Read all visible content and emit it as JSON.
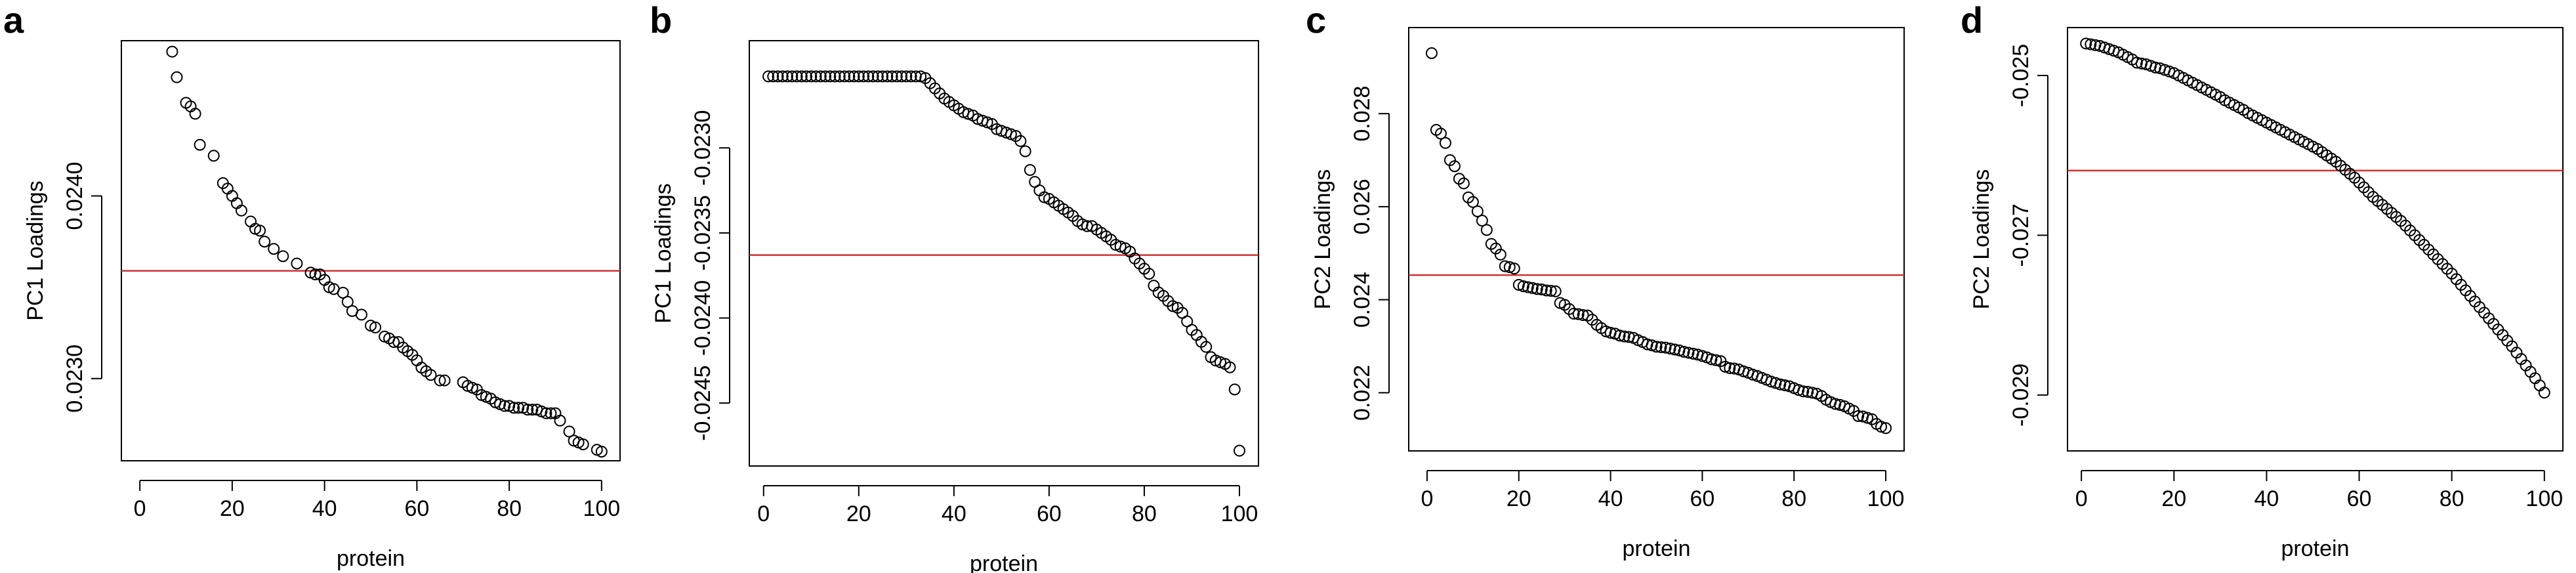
{
  "chart_data": [
    {
      "panel": "a",
      "type": "scatter",
      "xlabel": "protein",
      "ylabel": "PC1 Loadings",
      "xlim": [
        -4,
        104
      ],
      "ylim": [
        0.02255,
        0.02485
      ],
      "xticks": [
        0,
        20,
        40,
        60,
        80,
        100
      ],
      "yticks": [
        0.023,
        0.024
      ],
      "ytick_labels": [
        "0.0230",
        "0.0240"
      ],
      "reference_line": {
        "value": 0.02359,
        "color": "#cc3333"
      },
      "grid": false,
      "x": [
        7,
        8,
        10,
        11,
        12,
        13,
        16,
        18,
        19,
        20,
        21,
        22,
        24,
        25,
        26,
        27,
        29,
        31,
        34,
        37,
        38,
        39,
        40,
        41,
        42,
        44,
        45,
        46,
        48,
        50,
        51,
        53,
        54,
        55,
        56,
        57,
        58,
        59,
        60,
        61,
        62,
        63,
        65,
        66,
        70,
        71,
        72,
        73,
        74,
        75,
        76,
        77,
        78,
        79,
        80,
        81,
        82,
        83,
        84,
        85,
        86,
        87,
        88,
        89,
        90,
        91,
        93,
        94,
        95,
        96,
        99,
        100
      ],
      "y": [
        0.02479,
        0.02465,
        0.02451,
        0.02449,
        0.02445,
        0.02428,
        0.02422,
        0.02407,
        0.02404,
        0.024,
        0.02396,
        0.02392,
        0.02386,
        0.02382,
        0.02381,
        0.02375,
        0.02371,
        0.02367,
        0.02363,
        0.02358,
        0.02357,
        0.02357,
        0.02354,
        0.0235,
        0.02349,
        0.02347,
        0.02342,
        0.02337,
        0.02335,
        0.02329,
        0.02328,
        0.02323,
        0.02322,
        0.0232,
        0.0232,
        0.02317,
        0.02315,
        0.02313,
        0.0231,
        0.02306,
        0.02304,
        0.02302,
        0.02299,
        0.02299,
        0.02298,
        0.02296,
        0.02295,
        0.02294,
        0.02291,
        0.0229,
        0.02289,
        0.02287,
        0.02286,
        0.02285,
        0.02285,
        0.02284,
        0.02284,
        0.02284,
        0.02283,
        0.02283,
        0.02283,
        0.02282,
        0.02281,
        0.02281,
        0.02281,
        0.02277,
        0.02271,
        0.02266,
        0.02265,
        0.02264,
        0.02261,
        0.0226
      ]
    },
    {
      "panel": "b",
      "type": "scatter",
      "xlabel": "protein",
      "ylabel": "PC1 Loadings",
      "xlim": [
        -3,
        104
      ],
      "ylim": [
        -0.02487,
        -0.02237
      ],
      "xticks": [
        0,
        20,
        40,
        60,
        80,
        100
      ],
      "yticks": [
        -0.0245,
        -0.024,
        -0.0235,
        -0.023
      ],
      "ytick_labels": [
        "-0.0245",
        "-0.0240",
        "-0.0235",
        "-0.0230"
      ],
      "reference_line": {
        "value": -0.02363,
        "color": "#cc3333"
      },
      "grid": false,
      "x": [
        1,
        2,
        3,
        4,
        5,
        6,
        7,
        8,
        9,
        10,
        11,
        12,
        13,
        14,
        15,
        16,
        17,
        18,
        19,
        20,
        21,
        22,
        23,
        24,
        25,
        26,
        27,
        28,
        29,
        30,
        31,
        32,
        33,
        34,
        35,
        36,
        37,
        38,
        39,
        40,
        41,
        42,
        43,
        44,
        45,
        46,
        47,
        48,
        49,
        50,
        51,
        52,
        53,
        54,
        55,
        56,
        57,
        58,
        59,
        60,
        61,
        62,
        63,
        64,
        65,
        66,
        67,
        68,
        69,
        70,
        71,
        72,
        73,
        74,
        75,
        76,
        77,
        78,
        79,
        80,
        81,
        82,
        83,
        84,
        85,
        86,
        87,
        88,
        89,
        90,
        91,
        92,
        93,
        94,
        95,
        96,
        97,
        98,
        99,
        100
      ],
      "y": [
        -0.02258,
        -0.02258,
        -0.02258,
        -0.02258,
        -0.02258,
        -0.02258,
        -0.02258,
        -0.02258,
        -0.02258,
        -0.02258,
        -0.02258,
        -0.02258,
        -0.02258,
        -0.02258,
        -0.02258,
        -0.02258,
        -0.02258,
        -0.02258,
        -0.02258,
        -0.02258,
        -0.02258,
        -0.02258,
        -0.02258,
        -0.02258,
        -0.02258,
        -0.02258,
        -0.02258,
        -0.02258,
        -0.02258,
        -0.02258,
        -0.02258,
        -0.02258,
        -0.02258,
        -0.02259,
        -0.02262,
        -0.02265,
        -0.02268,
        -0.02271,
        -0.02273,
        -0.02275,
        -0.02277,
        -0.02279,
        -0.0228,
        -0.02281,
        -0.02283,
        -0.02284,
        -0.02285,
        -0.02286,
        -0.02289,
        -0.0229,
        -0.02291,
        -0.02292,
        -0.02293,
        -0.02296,
        -0.02302,
        -0.02313,
        -0.0232,
        -0.02325,
        -0.02329,
        -0.0233,
        -0.02332,
        -0.02334,
        -0.02336,
        -0.02338,
        -0.0234,
        -0.02343,
        -0.02345,
        -0.02346,
        -0.02346,
        -0.02348,
        -0.0235,
        -0.02352,
        -0.02354,
        -0.02357,
        -0.02358,
        -0.02359,
        -0.02361,
        -0.02365,
        -0.02368,
        -0.02371,
        -0.02374,
        -0.02381,
        -0.02385,
        -0.02387,
        -0.0239,
        -0.02393,
        -0.02394,
        -0.02397,
        -0.02402,
        -0.02407,
        -0.0241,
        -0.02414,
        -0.02417,
        -0.02423,
        -0.02425,
        -0.02426,
        -0.02427,
        -0.02429,
        -0.02442,
        -0.02478
      ]
    },
    {
      "panel": "c",
      "type": "scatter",
      "xlabel": "protein",
      "ylabel": "PC2 Loadings",
      "xlim": [
        -4,
        104
      ],
      "ylim": [
        0.02075,
        0.02985
      ],
      "xticks": [
        0,
        20,
        40,
        60,
        80,
        100
      ],
      "yticks": [
        0.022,
        0.024,
        0.026,
        0.028
      ],
      "ytick_labels": [
        "0.022",
        "0.024",
        "0.026",
        "0.028"
      ],
      "reference_line": {
        "value": 0.02453,
        "color": "#cc3333"
      },
      "grid": false,
      "x": [
        1,
        2,
        3,
        4,
        5,
        6,
        7,
        8,
        9,
        10,
        11,
        12,
        13,
        14,
        15,
        16,
        17,
        18,
        19,
        20,
        21,
        22,
        23,
        24,
        25,
        26,
        27,
        28,
        29,
        30,
        31,
        32,
        33,
        34,
        35,
        36,
        37,
        38,
        39,
        40,
        41,
        42,
        43,
        44,
        45,
        46,
        47,
        48,
        49,
        50,
        51,
        52,
        53,
        54,
        55,
        56,
        57,
        58,
        59,
        60,
        61,
        62,
        63,
        64,
        65,
        66,
        67,
        68,
        69,
        70,
        71,
        72,
        73,
        74,
        75,
        76,
        77,
        78,
        79,
        80,
        81,
        82,
        83,
        84,
        85,
        86,
        87,
        88,
        89,
        90,
        91,
        92,
        93,
        94,
        95,
        96,
        97,
        98,
        99,
        100
      ],
      "y": [
        0.0293,
        0.02765,
        0.02757,
        0.02737,
        0.027,
        0.02687,
        0.0266,
        0.0265,
        0.0262,
        0.0261,
        0.0259,
        0.0257,
        0.0255,
        0.0252,
        0.0251,
        0.02497,
        0.02472,
        0.0247,
        0.02467,
        0.02432,
        0.02429,
        0.02427,
        0.02425,
        0.02423,
        0.02422,
        0.0242,
        0.02419,
        0.02418,
        0.02393,
        0.02389,
        0.0238,
        0.0237,
        0.02369,
        0.02367,
        0.02366,
        0.02357,
        0.02346,
        0.02339,
        0.02332,
        0.02329,
        0.02327,
        0.02323,
        0.02321,
        0.0232,
        0.02318,
        0.02313,
        0.02309,
        0.02304,
        0.02302,
        0.02299,
        0.02298,
        0.02297,
        0.02295,
        0.02293,
        0.02291,
        0.02288,
        0.02286,
        0.02284,
        0.02282,
        0.02279,
        0.02276,
        0.02272,
        0.0227,
        0.02268,
        0.02256,
        0.02253,
        0.02252,
        0.0225,
        0.02246,
        0.02243,
        0.02239,
        0.02236,
        0.02232,
        0.02228,
        0.02224,
        0.02221,
        0.02218,
        0.02216,
        0.02214,
        0.0221,
        0.02206,
        0.02203,
        0.02202,
        0.022,
        0.02198,
        0.02193,
        0.02185,
        0.0218,
        0.02176,
        0.02174,
        0.02171,
        0.02166,
        0.02161,
        0.0215,
        0.02149,
        0.02146,
        0.02143,
        0.02133,
        0.02127,
        0.02124
      ]
    },
    {
      "panel": "d",
      "type": "scatter",
      "xlabel": "protein",
      "ylabel": "PC2 Loadings",
      "xlim": [
        -3,
        104
      ],
      "ylim": [
        -0.0297,
        -0.0244
      ],
      "xticks": [
        0,
        20,
        40,
        60,
        80,
        100
      ],
      "yticks": [
        -0.029,
        -0.027,
        -0.025
      ],
      "ytick_labels": [
        "-0.029",
        "-0.027",
        "-0.025"
      ],
      "reference_line": {
        "value": -0.02619,
        "color": "#cc3333"
      },
      "grid": false,
      "x": [
        1,
        2,
        3,
        4,
        5,
        6,
        7,
        8,
        9,
        10,
        11,
        12,
        13,
        14,
        15,
        16,
        17,
        18,
        19,
        20,
        21,
        22,
        23,
        24,
        25,
        26,
        27,
        28,
        29,
        30,
        31,
        32,
        33,
        34,
        35,
        36,
        37,
        38,
        39,
        40,
        41,
        42,
        43,
        44,
        45,
        46,
        47,
        48,
        49,
        50,
        51,
        52,
        53,
        54,
        55,
        56,
        57,
        58,
        59,
        60,
        61,
        62,
        63,
        64,
        65,
        66,
        67,
        68,
        69,
        70,
        71,
        72,
        73,
        74,
        75,
        76,
        77,
        78,
        79,
        80,
        81,
        82,
        83,
        84,
        85,
        86,
        87,
        88,
        89,
        90,
        91,
        92,
        93,
        94,
        95,
        96,
        97,
        98,
        99,
        100
      ],
      "y": [
        -0.0246,
        -0.02461,
        -0.02462,
        -0.02463,
        -0.02465,
        -0.02467,
        -0.02469,
        -0.02471,
        -0.02474,
        -0.02477,
        -0.0248,
        -0.02484,
        -0.02485,
        -0.02486,
        -0.02488,
        -0.0249,
        -0.02491,
        -0.02493,
        -0.02495,
        -0.02497,
        -0.025,
        -0.02503,
        -0.02506,
        -0.02509,
        -0.02512,
        -0.02515,
        -0.02518,
        -0.02521,
        -0.02524,
        -0.02527,
        -0.02531,
        -0.02534,
        -0.02537,
        -0.0254,
        -0.02543,
        -0.02547,
        -0.0255,
        -0.02553,
        -0.02556,
        -0.02559,
        -0.02562,
        -0.02565,
        -0.02568,
        -0.02571,
        -0.02574,
        -0.02577,
        -0.0258,
        -0.02583,
        -0.02586,
        -0.02589,
        -0.02592,
        -0.02596,
        -0.026,
        -0.02604,
        -0.02608,
        -0.02613,
        -0.02618,
        -0.02623,
        -0.02628,
        -0.02634,
        -0.0264,
        -0.02646,
        -0.02652,
        -0.02657,
        -0.02662,
        -0.02667,
        -0.02672,
        -0.02677,
        -0.02682,
        -0.02688,
        -0.02694,
        -0.027,
        -0.02706,
        -0.02712,
        -0.02718,
        -0.02724,
        -0.0273,
        -0.02736,
        -0.02742,
        -0.02748,
        -0.02755,
        -0.02762,
        -0.02769,
        -0.02776,
        -0.02783,
        -0.0279,
        -0.02797,
        -0.02804,
        -0.02811,
        -0.02818,
        -0.02825,
        -0.02832,
        -0.02839,
        -0.02847,
        -0.02855,
        -0.02863,
        -0.02871,
        -0.02879,
        -0.02888,
        -0.02897
      ]
    }
  ],
  "panels": [
    {
      "label": "a"
    },
    {
      "label": "b"
    },
    {
      "label": "c"
    },
    {
      "label": "d"
    }
  ]
}
